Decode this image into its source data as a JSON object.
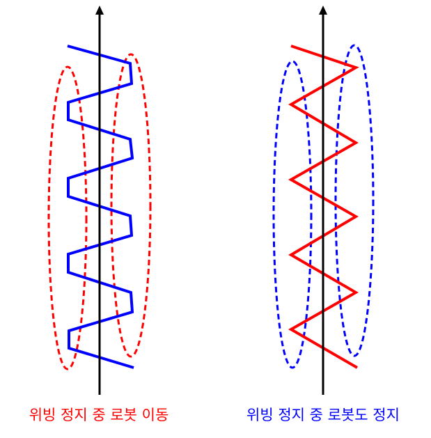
{
  "panels": [
    {
      "id": "left",
      "caption": "위빙 정지 중 로봇 이동",
      "caption_color": "#ff0000",
      "path_color": "#0000ff",
      "ellipse_color": "#ff0000",
      "path_style": "square-wave"
    },
    {
      "id": "right",
      "caption": "위빙 정지 중 로봇도 정지",
      "caption_color": "#0000ff",
      "path_color": "#ff0000",
      "ellipse_color": "#0000ff",
      "path_style": "zigzag"
    }
  ],
  "colors": {
    "axis": "#000000",
    "background": "#ffffff"
  },
  "icons": {
    "axis_arrow": "arrow-up-icon"
  }
}
